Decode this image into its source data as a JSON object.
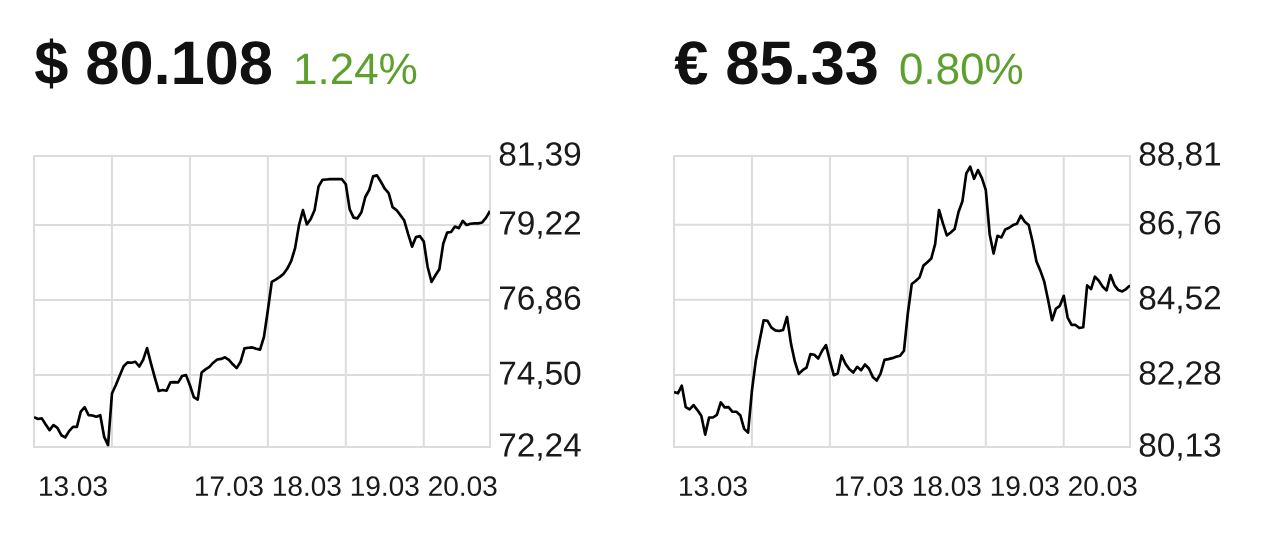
{
  "chart_data": [
    {
      "type": "line",
      "title": "$ 80.108",
      "subtitle": "1.24%",
      "color": "#000000",
      "categories": [
        null,
        null,
        null,
        null,
        null,
        null,
        null,
        null,
        null,
        null,
        "13.03",
        null,
        null,
        null,
        null,
        null,
        null,
        null,
        null,
        null,
        null,
        null,
        null,
        null,
        null,
        null,
        null,
        null,
        null,
        null,
        null,
        null,
        null,
        null,
        null,
        null,
        null,
        null,
        null,
        null,
        null,
        null,
        null,
        null,
        null,
        null,
        null,
        null,
        null,
        null,
        "17.03",
        null,
        null,
        null,
        null,
        null,
        null,
        null,
        null,
        null,
        null,
        null,
        null,
        null,
        null,
        null,
        null,
        null,
        null,
        null,
        "18.03",
        null,
        null,
        null,
        null,
        null,
        null,
        null,
        null,
        null,
        null,
        null,
        null,
        null,
        null,
        null,
        null,
        null,
        null,
        null,
        "19.03",
        null,
        null,
        null,
        null,
        null,
        null,
        null,
        null,
        null,
        null,
        null,
        null,
        null,
        null,
        null,
        null,
        null,
        null,
        null,
        "20.03",
        null,
        null,
        null,
        null,
        null,
        null,
        null
      ],
      "values": [
        73.18,
        73.12,
        73.14,
        72.95,
        72.77,
        72.93,
        72.84,
        72.61,
        72.54,
        72.74,
        72.87,
        72.87,
        73.35,
        73.49,
        73.24,
        73.23,
        73.19,
        73.24,
        72.56,
        72.3,
        73.92,
        74.19,
        74.49,
        74.78,
        74.9,
        74.89,
        74.92,
        74.77,
        74.98,
        75.35,
        74.87,
        74.42,
        74.0,
        74.03,
        74.01,
        74.27,
        74.28,
        74.27,
        74.47,
        74.5,
        74.18,
        73.81,
        73.73,
        74.58,
        74.68,
        74.76,
        74.89,
        74.99,
        75.01,
        75.06,
        74.98,
        74.84,
        74.72,
        74.92,
        75.34,
        75.36,
        75.37,
        75.33,
        75.3,
        75.7,
        76.54,
        77.43,
        77.5,
        77.58,
        77.68,
        77.85,
        78.09,
        78.5,
        79.22,
        79.69,
        79.24,
        79.41,
        79.69,
        80.43,
        80.64,
        80.65,
        80.66,
        80.66,
        80.66,
        80.66,
        80.5,
        79.71,
        79.45,
        79.43,
        79.62,
        80.1,
        80.32,
        80.75,
        80.78,
        80.58,
        80.36,
        80.22,
        79.78,
        79.69,
        79.53,
        79.36,
        78.93,
        78.54,
        78.84,
        78.87,
        78.7,
        77.9,
        77.43,
        77.64,
        77.83,
        78.63,
        78.98,
        79.0,
        79.17,
        79.12,
        79.35,
        79.22,
        79.26,
        79.27,
        79.27,
        79.3,
        79.45,
        79.66
      ],
      "ylim": [
        72.24,
        81.39
      ],
      "yticks": [
        {
          "value": 72.24,
          "label": "72,24"
        },
        {
          "value": 74.5,
          "label": "74,50"
        },
        {
          "value": 76.86,
          "label": "76,86"
        },
        {
          "value": 79.22,
          "label": "79,22"
        },
        {
          "value": 81.39,
          "label": "81,39"
        }
      ],
      "grid": true
    },
    {
      "type": "line",
      "title": "€ 85.33",
      "subtitle": "0.80%",
      "color": "#000000",
      "categories": [
        null,
        null,
        null,
        null,
        null,
        null,
        null,
        null,
        null,
        null,
        "13.03",
        null,
        null,
        null,
        null,
        null,
        null,
        null,
        null,
        null,
        null,
        null,
        null,
        null,
        null,
        null,
        null,
        null,
        null,
        null,
        null,
        null,
        null,
        null,
        null,
        null,
        null,
        null,
        null,
        null,
        null,
        null,
        null,
        null,
        null,
        null,
        null,
        null,
        null,
        null,
        "17.03",
        null,
        null,
        null,
        null,
        null,
        null,
        null,
        null,
        null,
        null,
        null,
        null,
        null,
        null,
        null,
        null,
        null,
        null,
        null,
        "18.03",
        null,
        null,
        null,
        null,
        null,
        null,
        null,
        null,
        null,
        null,
        null,
        null,
        null,
        null,
        null,
        null,
        null,
        null,
        null,
        "19.03",
        null,
        null,
        null,
        null,
        null,
        null,
        null,
        null,
        null,
        null,
        null,
        null,
        null,
        null,
        null,
        null,
        null,
        null,
        null,
        "20.03",
        null,
        null,
        null,
        null,
        null,
        null,
        null
      ],
      "values": [
        81.77,
        81.73,
        81.96,
        81.32,
        81.25,
        81.38,
        81.23,
        81.06,
        80.5,
        81.01,
        81.01,
        81.09,
        81.46,
        81.31,
        81.32,
        81.18,
        81.18,
        81.08,
        80.67,
        80.56,
        81.82,
        82.72,
        83.32,
        83.91,
        83.89,
        83.69,
        83.61,
        83.59,
        83.62,
        84.01,
        83.22,
        82.68,
        82.31,
        82.42,
        82.5,
        82.9,
        82.88,
        82.77,
        83.0,
        83.17,
        82.7,
        82.27,
        82.32,
        82.86,
        82.61,
        82.45,
        82.35,
        82.52,
        82.42,
        82.59,
        82.47,
        82.22,
        82.11,
        82.32,
        82.73,
        82.75,
        82.78,
        82.82,
        82.85,
        83.0,
        84.12,
        84.99,
        85.08,
        85.19,
        85.54,
        85.64,
        85.75,
        86.18,
        87.2,
        86.8,
        86.44,
        86.53,
        86.63,
        87.14,
        87.46,
        88.29,
        88.49,
        88.13,
        88.39,
        88.15,
        87.79,
        86.47,
        85.9,
        86.43,
        86.38,
        86.62,
        86.67,
        86.75,
        86.79,
        87.03,
        86.85,
        86.75,
        86.26,
        85.66,
        85.39,
        85.06,
        84.51,
        83.91,
        84.26,
        84.34,
        84.64,
        83.99,
        83.77,
        83.77,
        83.68,
        83.7,
        84.95,
        84.84,
        85.21,
        85.09,
        84.91,
        84.8,
        85.26,
        84.96,
        84.81,
        84.77,
        84.84,
        84.95
      ],
      "ylim": [
        80.13,
        88.81
      ],
      "yticks": [
        {
          "value": 80.13,
          "label": "80,13"
        },
        {
          "value": 82.28,
          "label": "82,28"
        },
        {
          "value": 84.52,
          "label": "84,52"
        },
        {
          "value": 86.76,
          "label": "86,76"
        },
        {
          "value": 88.81,
          "label": "88,81"
        }
      ],
      "grid": true
    }
  ]
}
